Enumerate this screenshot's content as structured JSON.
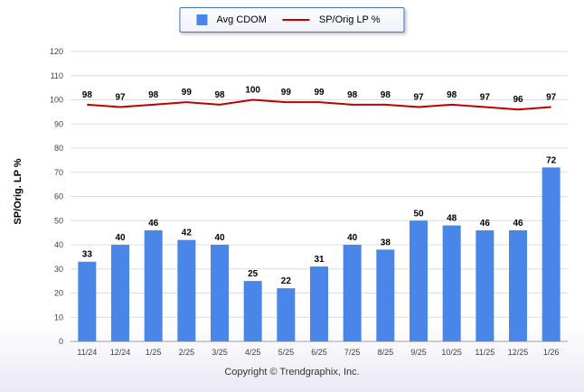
{
  "legend": {
    "items": [
      {
        "label": "Avg CDOM",
        "type": "bar",
        "color": "#4a86e8"
      },
      {
        "label": "SP/Orig LP %",
        "type": "line",
        "color": "#c00000"
      }
    ]
  },
  "footer": {
    "text": "Copyright © Trendgraphix, Inc."
  },
  "chart_data": {
    "type": "bar",
    "categories": [
      "11/24",
      "12/24",
      "1/25",
      "2/25",
      "3/25",
      "4/25",
      "5/25",
      "6/25",
      "7/25",
      "8/25",
      "9/25",
      "10/25",
      "11/25",
      "12/25",
      "1/26"
    ],
    "series": [
      {
        "name": "Avg CDOM",
        "type": "bar",
        "color": "#4a86e8",
        "values": [
          33,
          40,
          46,
          42,
          40,
          25,
          22,
          31,
          40,
          38,
          50,
          48,
          46,
          46,
          72
        ]
      },
      {
        "name": "SP/Orig LP %",
        "type": "line",
        "color": "#c00000",
        "values": [
          98,
          97,
          98,
          99,
          98,
          100,
          99,
          99,
          98,
          98,
          97,
          98,
          97,
          96,
          97
        ]
      }
    ],
    "title": "",
    "xlabel": "",
    "ylabel": "SP/Orig. LP %",
    "ylim": [
      0,
      120
    ],
    "ytick_step": 10,
    "grid": true,
    "legend_position": "top-center",
    "value_labels": true
  }
}
